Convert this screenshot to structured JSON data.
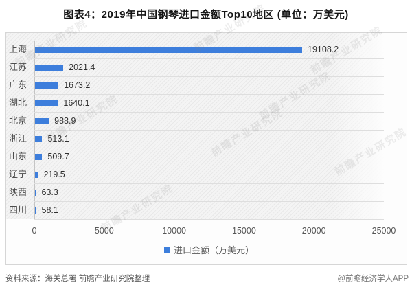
{
  "title": "图表4：2019年中国钢琴进口金额Top10地区 (单位：万美元)",
  "chart_data": {
    "type": "bar",
    "orientation": "horizontal",
    "title": "图表4：2019年中国钢琴进口金额Top10地区 (单位：万美元)",
    "categories": [
      "上海",
      "江苏",
      "广东",
      "湖北",
      "北京",
      "浙江",
      "山东",
      "辽宁",
      "陕西",
      "四川"
    ],
    "values": [
      19108.2,
      2021.4,
      1673.2,
      1640.1,
      988.9,
      513.1,
      509.7,
      219.5,
      63.3,
      58.1
    ],
    "value_labels": [
      "19108.2",
      "2021.4",
      "1673.2",
      "1640.1",
      "988.9",
      "513.1",
      "509.7",
      "219.5",
      "63.3",
      "58.1"
    ],
    "x_ticks": [
      "0",
      "5000",
      "10000",
      "15000",
      "20000",
      "25000"
    ],
    "xlim": [
      0,
      25000
    ],
    "xlabel": "",
    "ylabel": "",
    "legend": "进口金额（万美元）",
    "legend_position": "bottom-center",
    "grid": "horizontal-row-separators",
    "bar_color": "#3d7edc"
  },
  "footer": {
    "source": "资料来源：海关总署 前瞻产业研究院整理",
    "credit": "@前瞻经济学人APP"
  },
  "watermark": {
    "text": "前瞻产业研究院"
  }
}
